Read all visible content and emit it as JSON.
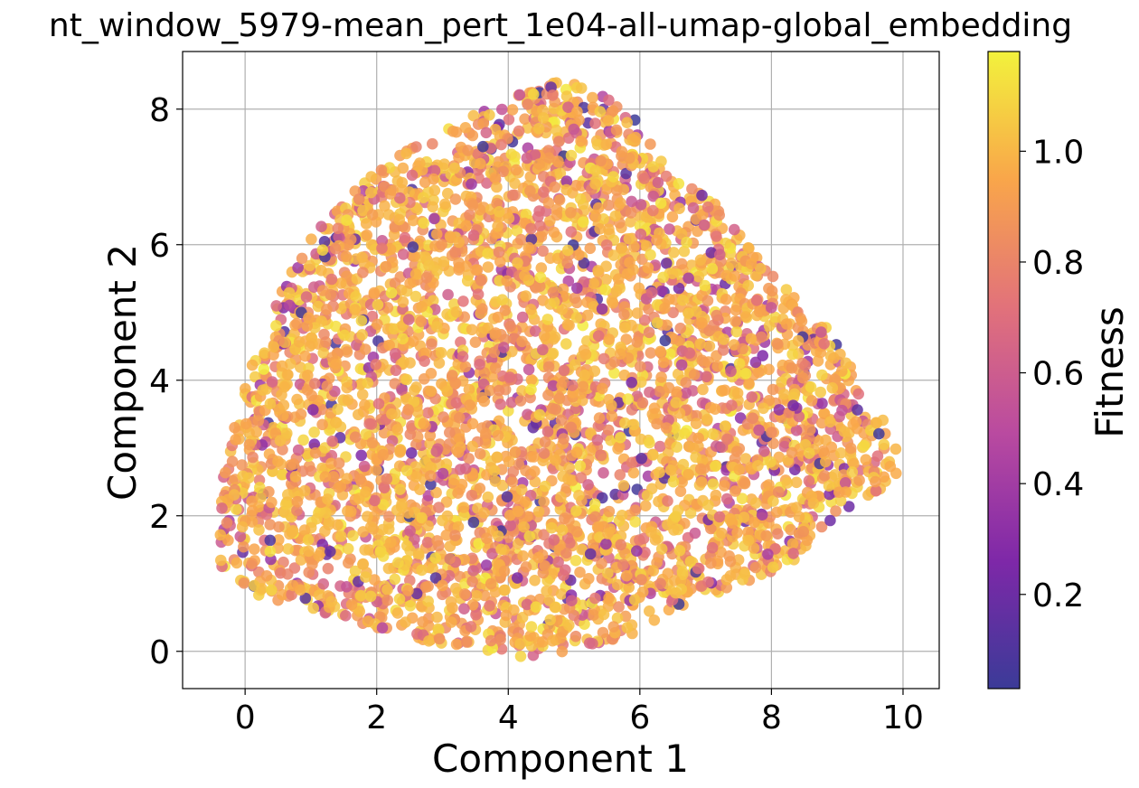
{
  "chart_data": {
    "type": "scatter",
    "title": "nt_window_5979-mean_pert_1e04-all-umap-global_embedding",
    "xlabel": "Component 1",
    "ylabel": "Component 2",
    "xlim": [
      -0.95,
      10.55
    ],
    "ylim": [
      -0.55,
      8.85
    ],
    "xticks": [
      "0",
      "2",
      "4",
      "6",
      "8",
      "10"
    ],
    "yticks": [
      "0",
      "2",
      "4",
      "6",
      "8"
    ],
    "xtick_values": [
      0,
      2,
      4,
      6,
      8,
      10
    ],
    "ytick_values": [
      0,
      2,
      4,
      6,
      8
    ],
    "grid": true,
    "colormap": "plasma",
    "colorbar": {
      "label": "Fitness",
      "range": [
        0.03,
        1.18
      ],
      "ticks": [
        "0.2",
        "0.4",
        "0.6",
        "0.8",
        "1.0"
      ],
      "tick_values": [
        0.2,
        0.4,
        0.6,
        0.8,
        1.0
      ]
    },
    "cloud_outline": [
      [
        -0.4,
        1.9
      ],
      [
        -0.3,
        2.9
      ],
      [
        0.0,
        3.9
      ],
      [
        0.3,
        4.8
      ],
      [
        0.7,
        5.6
      ],
      [
        1.2,
        6.4
      ],
      [
        1.9,
        7.0
      ],
      [
        2.6,
        7.5
      ],
      [
        3.3,
        7.9
      ],
      [
        4.0,
        8.2
      ],
      [
        4.6,
        8.4
      ],
      [
        5.3,
        8.35
      ],
      [
        5.9,
        7.9
      ],
      [
        6.5,
        7.0
      ],
      [
        7.2,
        6.6
      ],
      [
        7.7,
        5.9
      ],
      [
        8.3,
        5.4
      ],
      [
        8.9,
        4.8
      ],
      [
        9.4,
        4.0
      ],
      [
        9.9,
        3.0
      ],
      [
        9.9,
        2.5
      ],
      [
        9.3,
        2.2
      ],
      [
        8.8,
        1.8
      ],
      [
        8.2,
        1.2
      ],
      [
        7.3,
        0.9
      ],
      [
        6.5,
        0.6
      ],
      [
        5.8,
        0.2
      ],
      [
        5.0,
        0.0
      ],
      [
        4.0,
        -0.1
      ],
      [
        3.0,
        0.1
      ],
      [
        2.2,
        0.3
      ],
      [
        1.4,
        0.5
      ],
      [
        0.6,
        0.7
      ],
      [
        0.0,
        0.9
      ],
      [
        -0.4,
        1.2
      ]
    ],
    "point_count": 4200,
    "fitness_distribution": {
      "mode": 0.98,
      "spread": 0.15,
      "min": 0.03,
      "max": 1.18
    }
  }
}
